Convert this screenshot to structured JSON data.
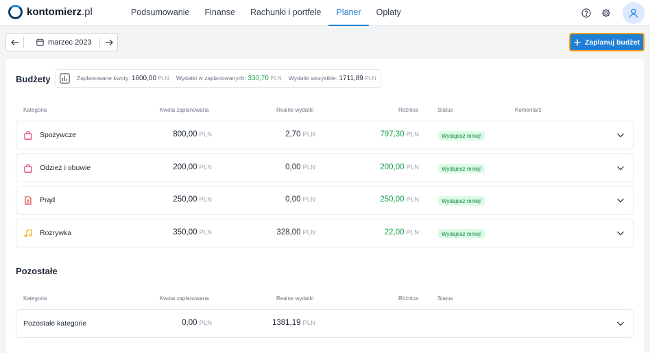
{
  "app": {
    "logo_main": "kontomierz",
    "logo_suffix": ".pl"
  },
  "nav": {
    "items": [
      {
        "label": "Podsumowanie",
        "active": false
      },
      {
        "label": "Finanse",
        "active": false
      },
      {
        "label": "Rachunki i portfele",
        "active": false
      },
      {
        "label": "Planer",
        "active": true
      },
      {
        "label": "Opłaty",
        "active": false
      }
    ]
  },
  "top_icons": [
    "help-circle-icon",
    "gear-icon",
    "user-icon"
  ],
  "toolbar": {
    "month": "marzec 2023",
    "plan_button": "Zaplanuj budżet"
  },
  "budgets": {
    "title": "Budżety",
    "summary": {
      "planned_label": "Zaplanowane kwoty:",
      "planned_value": "1600,00",
      "spent_planned_label": "Wydatki w zaplanowanych:",
      "spent_planned_value": "330,70",
      "spent_all_label": "Wydatki wszystkie:",
      "spent_all_value": "1711,89",
      "currency": "PLN"
    },
    "columns": {
      "category": "Kategoria",
      "planned": "Kwota zaplanowana",
      "actual": "Realne wydatki",
      "diff": "Różnica",
      "status": "Status",
      "comment": "Komentarz"
    },
    "rows": [
      {
        "category": "Spożywcze",
        "icon": "shopping-bag-icon",
        "icon_color": "#e11d74",
        "planned": "800,00",
        "actual": "2,70",
        "diff": "797,30",
        "status": "Wydajesz mniej!"
      },
      {
        "category": "Odzież i obuwie",
        "icon": "shopping-bag-icon",
        "icon_color": "#e11d74",
        "planned": "200,00",
        "actual": "0,00",
        "diff": "200,00",
        "status": "Wydajesz mniej!"
      },
      {
        "category": "Prąd",
        "icon": "document-icon",
        "icon_color": "#dc2626",
        "planned": "250,00",
        "actual": "0,00",
        "diff": "250,00",
        "status": "Wydajesz mniej!"
      },
      {
        "category": "Rozrywka",
        "icon": "music-note-icon",
        "icon_color": "#f59e0b",
        "planned": "350,00",
        "actual": "328,00",
        "diff": "22,00",
        "status": "Wydajesz mniej!"
      }
    ],
    "currency": "PLN"
  },
  "others": {
    "title": "Pozostałe",
    "columns": {
      "category": "Kategoria",
      "planned": "Kwota zaplanowana",
      "actual": "Realne wydatki",
      "diff": "Różnica",
      "status": "Status"
    },
    "rows": [
      {
        "category": "Pozostałe kategorie",
        "planned": "0,00",
        "actual": "1381,19"
      }
    ],
    "currency": "PLN"
  },
  "colors": {
    "accent": "#1f7fd6",
    "positive": "#16a34a",
    "focus_outline": "#f59e0b"
  }
}
